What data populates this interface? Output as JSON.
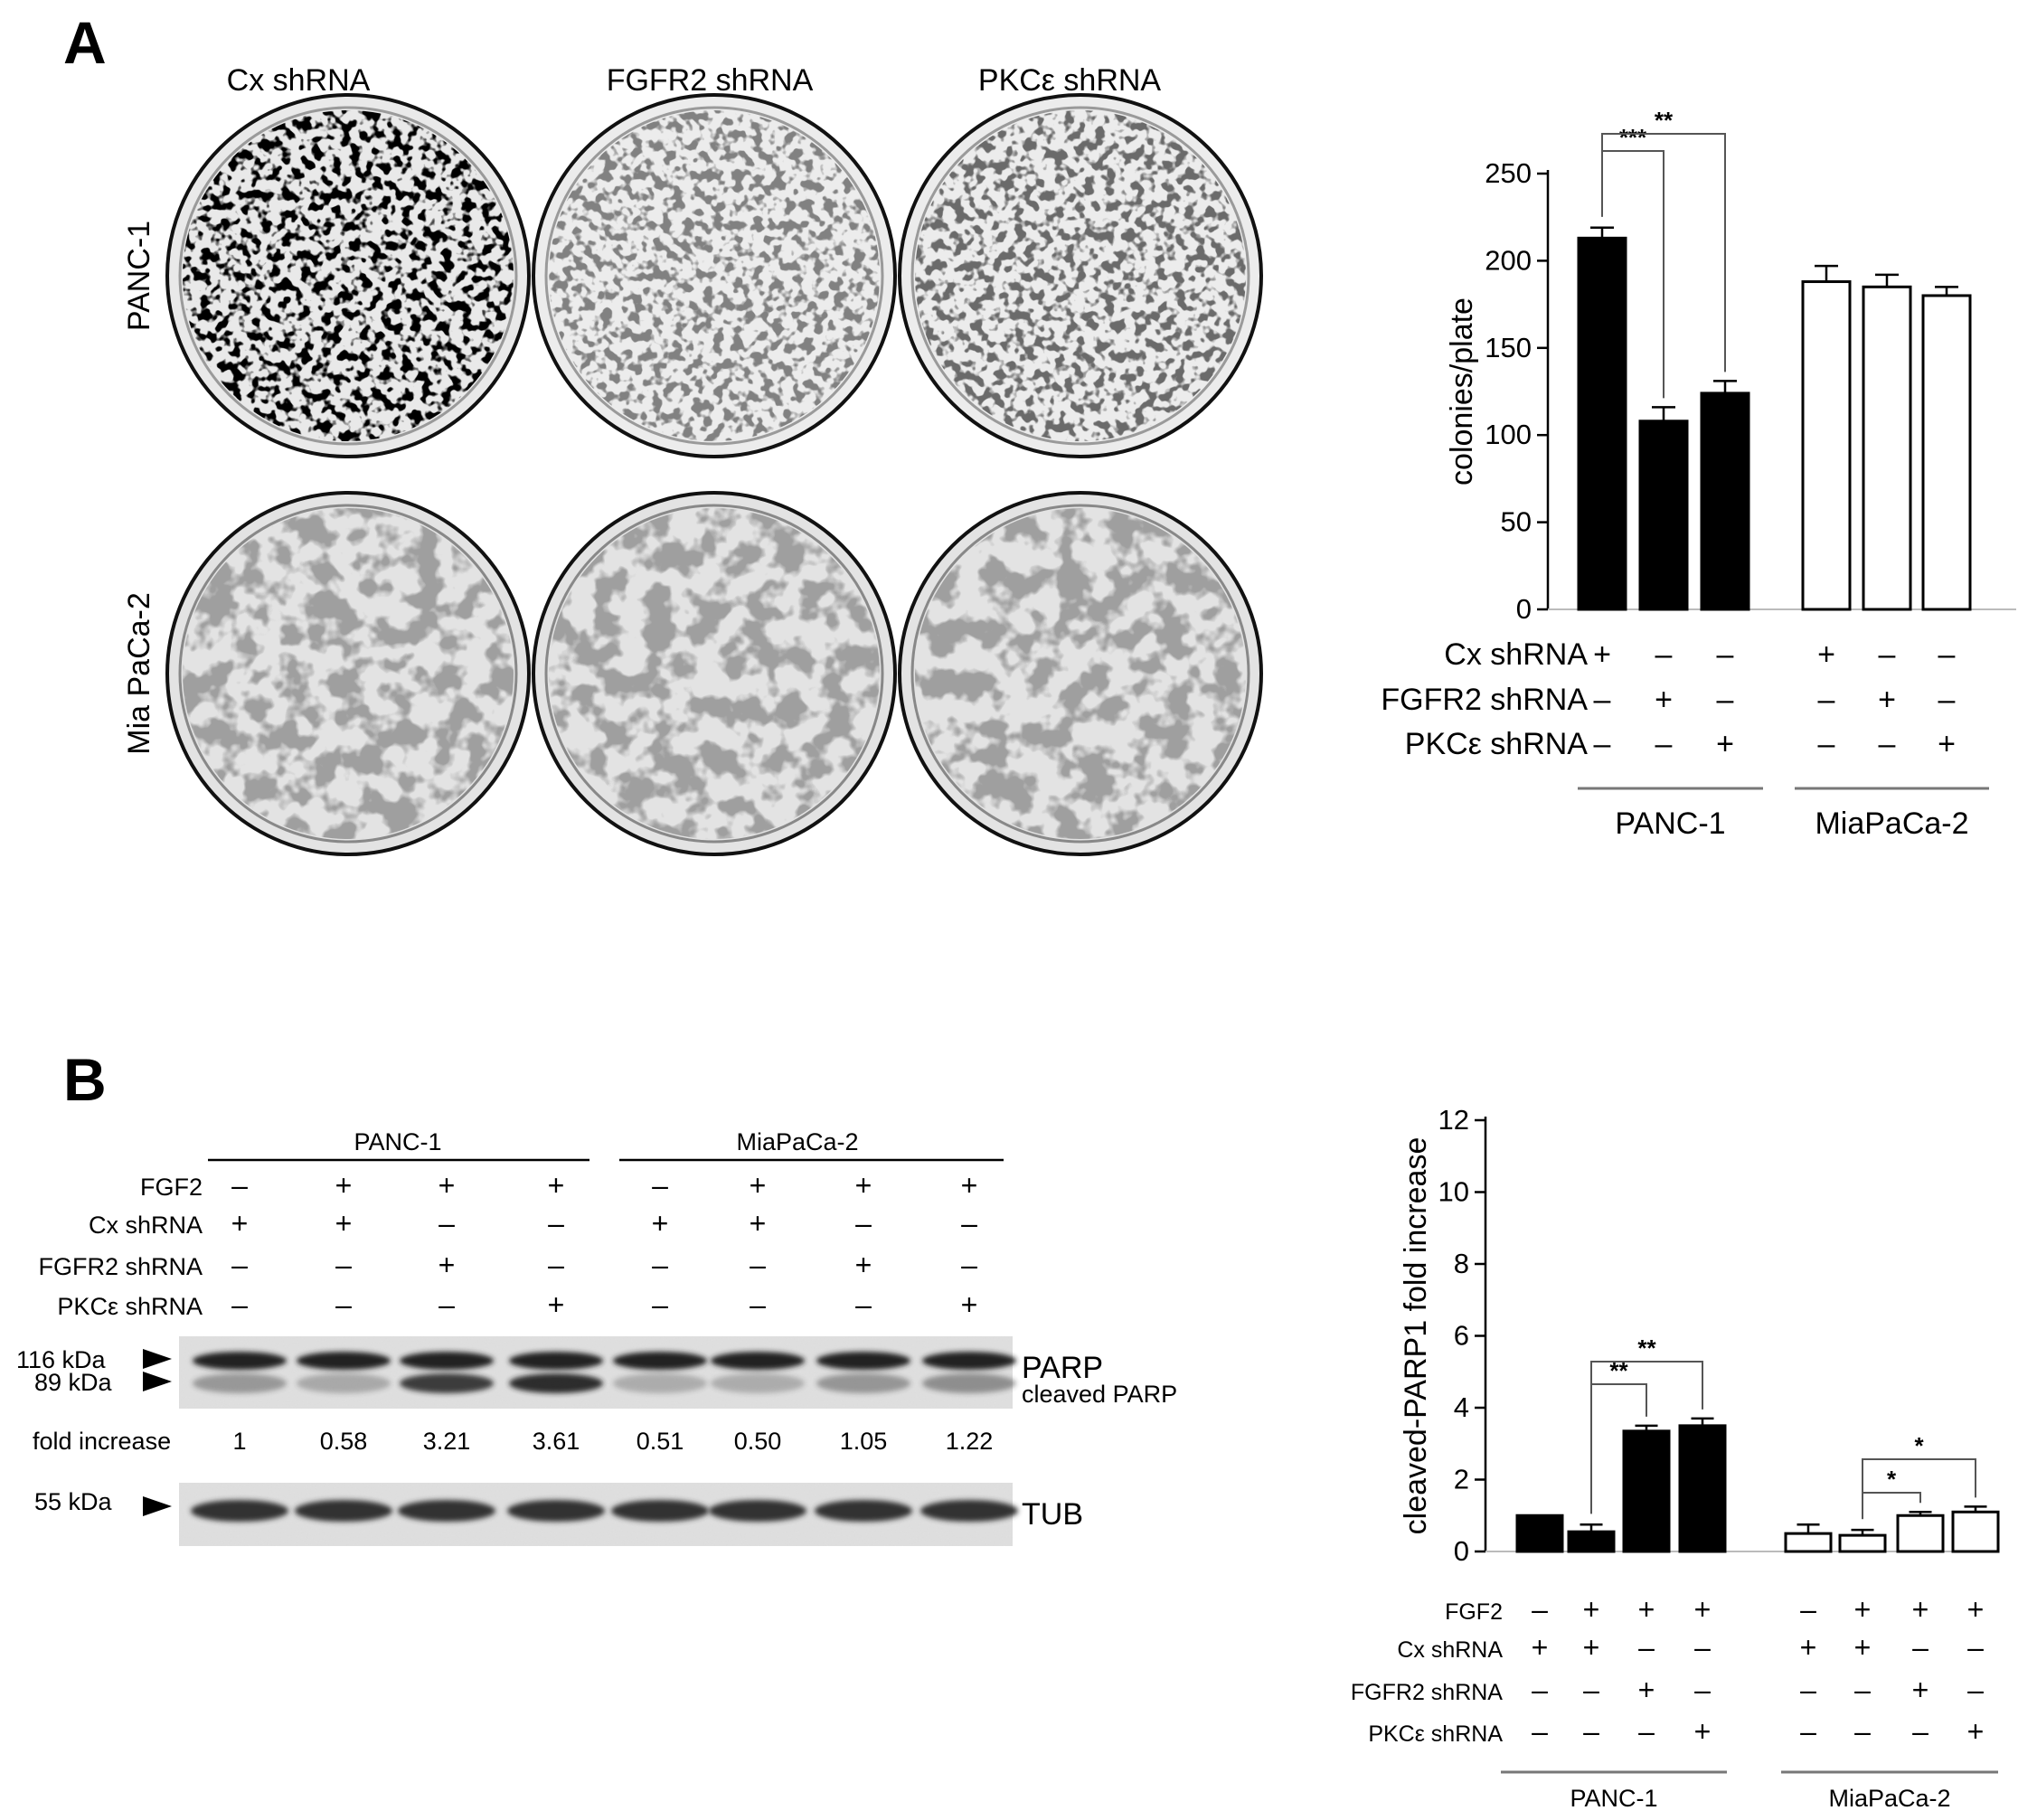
{
  "panel_a": {
    "letter": "A",
    "plate_columns": [
      "Cx shRNA",
      "FGFR2 shRNA",
      "PKCε shRNA"
    ],
    "plate_rows": [
      "PANC-1",
      "Mia PaCa-2"
    ]
  },
  "panel_b": {
    "letter": "B",
    "blot": {
      "groups": [
        "PANC-1",
        "MiaPaCa-2"
      ],
      "row_labels": [
        "FGF2",
        "Cx shRNA",
        "FGFR2 shRNA",
        "PKCε shRNA"
      ],
      "rows": [
        [
          "-",
          "+",
          "+",
          "+",
          "-",
          "+",
          "+",
          "+"
        ],
        [
          "+",
          "+",
          "-",
          "-",
          "+",
          "+",
          "-",
          "-"
        ],
        [
          "-",
          "-",
          "+",
          "-",
          "-",
          "-",
          "+",
          "-"
        ],
        [
          "-",
          "-",
          "-",
          "+",
          "-",
          "-",
          "-",
          "+"
        ]
      ],
      "mw_markers": [
        "116 kDa",
        "89 kDa",
        "55 kDa"
      ],
      "band_labels": [
        "PARP",
        "cleaved PARP",
        "TUB"
      ],
      "fold_label": "fold increase",
      "fold_values": [
        "1",
        "0.58",
        "3.21",
        "3.61",
        "0.51",
        "0.50",
        "1.05",
        "1.22"
      ]
    }
  },
  "chart_data": [
    {
      "type": "bar",
      "ylabel": "colonies/plate",
      "ylim": [
        0,
        250
      ],
      "yticks": [
        "0",
        "50",
        "100",
        "150",
        "200",
        "250"
      ],
      "groups": [
        "PANC-1",
        "MiaPaCa-2"
      ],
      "condition_labels": [
        "Cx shRNA",
        "FGFR2 shRNA",
        "PKCε shRNA"
      ],
      "conditions": [
        [
          "+",
          "-",
          "-",
          "+",
          "-",
          "-"
        ],
        [
          "-",
          "+",
          "-",
          "-",
          "+",
          "-"
        ],
        [
          "-",
          "-",
          "+",
          "-",
          "-",
          "+"
        ]
      ],
      "values": [
        213,
        108,
        124,
        188,
        185,
        180
      ],
      "errors": [
        6,
        8,
        7,
        9,
        7,
        5
      ],
      "fills": [
        "#000000",
        "#000000",
        "#000000",
        "#ffffff",
        "#ffffff",
        "#ffffff"
      ],
      "significance": [
        {
          "from": 0,
          "to": 1,
          "label": "***"
        },
        {
          "from": 0,
          "to": 2,
          "label": "**"
        }
      ]
    },
    {
      "type": "bar",
      "ylabel": "cleaved-PARP1  fold increase",
      "ylim": [
        0,
        12
      ],
      "yticks": [
        "0",
        "2",
        "4",
        "6",
        "8",
        "10",
        "12"
      ],
      "groups": [
        "PANC-1",
        "MiaPaCa-2"
      ],
      "condition_labels": [
        "FGF2",
        "Cx shRNA",
        "FGFR2 shRNA",
        "PKCε shRNA"
      ],
      "conditions": [
        [
          "-",
          "+",
          "+",
          "+",
          "-",
          "+",
          "+",
          "+"
        ],
        [
          "+",
          "+",
          "-",
          "-",
          "+",
          "+",
          "-",
          "-"
        ],
        [
          "-",
          "-",
          "+",
          "-",
          "-",
          "-",
          "+",
          "-"
        ],
        [
          "-",
          "-",
          "-",
          "+",
          "-",
          "-",
          "-",
          "+"
        ]
      ],
      "values": [
        1.0,
        0.55,
        3.35,
        3.5,
        0.5,
        0.45,
        1.0,
        1.1
      ],
      "errors": [
        0,
        0.2,
        0.15,
        0.2,
        0.25,
        0.15,
        0.1,
        0.15
      ],
      "fills": [
        "#000000",
        "#000000",
        "#000000",
        "#000000",
        "#ffffff",
        "#ffffff",
        "#ffffff",
        "#ffffff"
      ],
      "significance": [
        {
          "from": 1,
          "to": 2,
          "label": "**"
        },
        {
          "from": 1,
          "to": 3,
          "label": "**"
        },
        {
          "from": 5,
          "to": 6,
          "label": "*"
        },
        {
          "from": 5,
          "to": 7,
          "label": "*"
        }
      ]
    }
  ]
}
